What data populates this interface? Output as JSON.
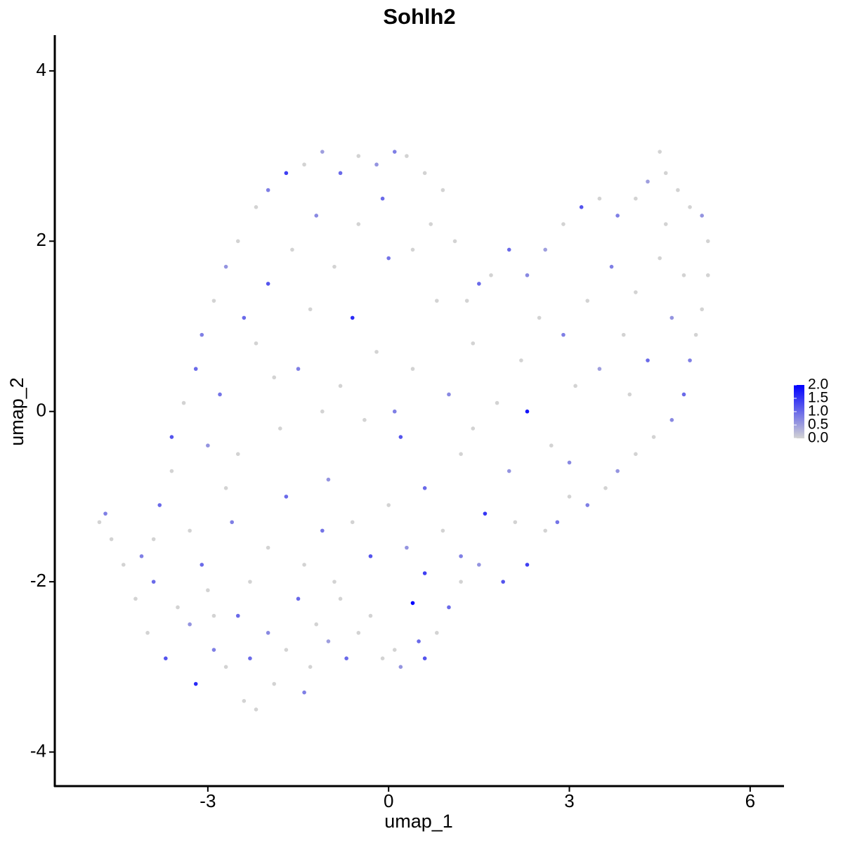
{
  "chart_data": {
    "type": "scatter",
    "title": "Sohlh2",
    "x_label": "umap_1",
    "y_label": "umap_2",
    "xlim": [
      -5.54,
      6.55
    ],
    "ylim": [
      -4.4,
      4.42
    ],
    "xticks": [
      -3,
      0,
      3,
      6
    ],
    "yticks": [
      -4,
      -2,
      0,
      2,
      4
    ],
    "low_color": "#d3d3d3",
    "high_color": "#0000ff",
    "clim": [
      0,
      2
    ],
    "legend_ticks": [
      {
        "value": 2,
        "label": "2.0"
      },
      {
        "value": 1.5,
        "label": "1.5"
      },
      {
        "value": 1,
        "label": "1.0"
      },
      {
        "value": 0.5,
        "label": "0.5"
      },
      {
        "value": 0,
        "label": "0.0"
      }
    ],
    "x": [
      -4.7,
      -4.8,
      -4.6,
      -4.4,
      -4.2,
      -4.0,
      -3.9,
      -3.7,
      -3.5,
      -3.3,
      -3.2,
      -3.0,
      -2.9,
      -2.7,
      -2.5,
      -2.4,
      -2.3,
      -2.2,
      -2.0,
      -1.9,
      -1.7,
      -1.5,
      -1.3,
      -1.4,
      -1.2,
      -1.0,
      -0.8,
      -0.7,
      -0.5,
      -0.3,
      -0.1,
      0.1,
      0.2,
      0.4,
      0.5,
      0.6,
      0.8,
      1.0,
      1.2,
      1.5,
      1.9,
      2.3,
      2.6,
      2.8,
      3.0,
      3.3,
      3.6,
      3.8,
      4.1,
      4.4,
      4.7,
      4.9,
      5.0,
      5.1,
      5.2,
      5.3,
      5.3,
      5.2,
      5.0,
      4.8,
      4.6,
      4.5,
      4.3,
      4.1,
      3.8,
      3.5,
      3.2,
      2.9,
      2.6,
      2.3,
      2.0,
      1.7,
      1.5,
      1.3,
      1.1,
      0.9,
      0.6,
      0.3,
      0.1,
      -0.2,
      -0.5,
      -0.8,
      -1.1,
      -1.4,
      -1.7,
      -2.0,
      -2.2,
      -2.5,
      -2.7,
      -2.9,
      -3.1,
      -3.2,
      -3.4,
      -3.6,
      -3.6,
      -3.8,
      -3.9,
      -4.1,
      -2.8,
      -2.5,
      -2.2,
      -2.0,
      -1.8,
      -1.5,
      -1.3,
      -1.0,
      -0.8,
      -0.6,
      -0.4,
      -0.2,
      0.0,
      0.2,
      0.4,
      0.6,
      0.8,
      1.0,
      1.2,
      1.4,
      1.6,
      1.8,
      2.0,
      2.2,
      2.3,
      2.5,
      2.7,
      2.9,
      3.1,
      3.3,
      3.5,
      3.7,
      3.9,
      4.1,
      4.3,
      4.5,
      4.7,
      4.9,
      4.0,
      -2.6,
      -2.3,
      -2.0,
      -1.7,
      -1.4,
      -1.1,
      -0.9,
      -0.6,
      -0.3,
      0.0,
      0.3,
      0.6,
      0.9,
      1.2,
      -3.1,
      -3.3,
      -2.9,
      -2.7,
      -3.0,
      -1.9,
      -1.6,
      -1.2,
      -0.9,
      -0.5,
      -0.1,
      0.4,
      0.7,
      -2.4,
      -1.1,
      0.1,
      1.4,
      2.1,
      3.0,
      4.6
    ],
    "values": [
      -1.2,
      -1.3,
      -1.5,
      -1.8,
      -2.2,
      -2.6,
      -2.0,
      -2.9,
      -2.3,
      -2.5,
      -3.2,
      -2.1,
      -2.8,
      -3.0,
      -2.4,
      -3.4,
      -2.9,
      -3.5,
      -2.6,
      -3.2,
      -2.8,
      -2.2,
      -3.0,
      -3.3,
      -2.5,
      -2.7,
      -2.2,
      -2.9,
      -2.6,
      -2.4,
      -2.9,
      -2.8,
      -3.0,
      -2.25,
      -2.7,
      -2.9,
      -2.6,
      -2.3,
      -2.0,
      -1.8,
      -2.0,
      -1.8,
      -1.4,
      -1.3,
      -1.0,
      -1.1,
      -0.9,
      -0.7,
      -0.5,
      -0.3,
      -0.1,
      0.2,
      0.6,
      0.9,
      1.2,
      1.6,
      2.0,
      2.3,
      2.4,
      2.6,
      2.8,
      3.05,
      2.7,
      2.5,
      2.3,
      2.5,
      2.4,
      2.2,
      1.9,
      1.6,
      1.9,
      1.6,
      1.5,
      1.3,
      2.0,
      2.6,
      2.8,
      3.0,
      3.05,
      2.9,
      3.0,
      2.8,
      3.05,
      2.9,
      2.8,
      2.6,
      2.4,
      2.0,
      1.7,
      1.3,
      0.9,
      0.5,
      0.1,
      -0.3,
      -0.7,
      -1.1,
      -1.5,
      -1.7,
      0.2,
      -0.5,
      0.8,
      1.5,
      -0.2,
      0.5,
      1.2,
      -0.8,
      0.3,
      1.1,
      -0.1,
      0.7,
      1.8,
      -0.3,
      0.5,
      -0.9,
      1.3,
      0.2,
      -0.5,
      0.8,
      -1.2,
      0.1,
      -0.7,
      0.6,
      0.0,
      1.1,
      -0.4,
      0.9,
      0.3,
      1.3,
      0.5,
      1.7,
      0.9,
      1.4,
      0.6,
      1.8,
      1.1,
      1.6,
      0.2,
      -1.3,
      -2.0,
      -1.6,
      -1.0,
      -1.8,
      -1.4,
      -2.0,
      -1.3,
      -1.7,
      -1.1,
      -1.6,
      -1.9,
      -1.4,
      -1.7,
      -1.8,
      -1.4,
      -2.4,
      -0.9,
      -0.4,
      0.4,
      1.9,
      2.3,
      1.7,
      2.2,
      2.5,
      1.9,
      2.2,
      1.1,
      0.0,
      0.0,
      -0.2,
      -1.3,
      -0.6,
      2.2
    ],
    "expression": [
      0.8,
      0,
      0,
      0,
      0,
      0,
      1,
      1.2,
      0,
      0.6,
      1.6,
      0,
      0.8,
      0,
      1,
      0,
      1,
      0,
      0.7,
      0,
      0,
      1,
      0,
      0.8,
      0,
      0.5,
      0,
      1,
      0,
      0,
      0,
      0,
      0.6,
      2,
      1,
      1.2,
      0,
      1,
      0,
      0.6,
      1.2,
      1.4,
      0,
      0.9,
      0,
      0.8,
      0,
      0.6,
      0,
      0,
      0.7,
      1,
      0.8,
      0,
      0,
      0,
      0,
      0.6,
      0,
      0,
      0,
      0,
      0.5,
      0,
      0.8,
      0,
      1.2,
      0,
      0.5,
      0.7,
      1,
      0,
      1,
      0,
      0,
      0,
      0,
      0,
      0.8,
      0.6,
      0,
      1,
      0.5,
      0,
      1.4,
      0.8,
      0,
      0,
      0.6,
      0,
      0.8,
      1,
      0,
      1.2,
      0,
      1,
      0,
      0.8,
      0.9,
      0,
      0,
      1.2,
      0,
      0.8,
      0,
      0.6,
      0,
      1.6,
      0,
      0,
      0.9,
      1.2,
      0,
      1,
      0,
      0.7,
      0,
      0,
      1.5,
      0,
      0.6,
      0,
      1.8,
      0,
      0,
      0.8,
      0,
      0,
      0.5,
      0.8,
      0,
      0,
      1,
      0,
      0.6,
      0,
      0,
      0.8,
      0,
      0,
      1,
      0,
      0.9,
      0,
      0,
      1.2,
      0,
      0.6,
      1.4,
      0,
      0.8,
      1,
      0,
      0,
      0,
      0.6,
      0,
      0,
      0.7,
      0,
      0,
      1,
      0,
      0,
      1,
      0,
      0.8,
      0,
      0,
      0.7,
      0
    ]
  }
}
